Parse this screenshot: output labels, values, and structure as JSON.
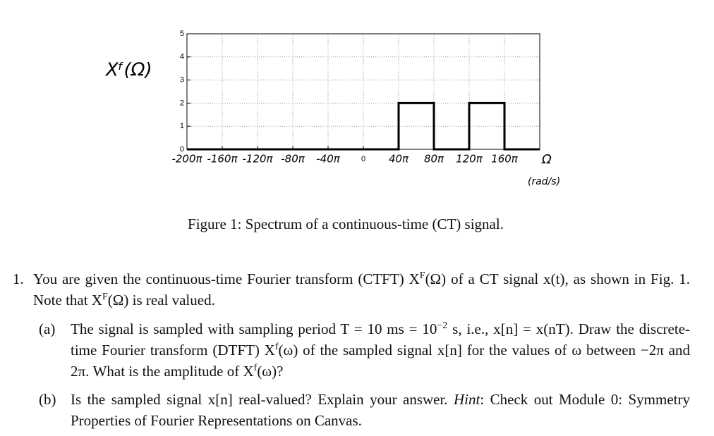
{
  "chart_data": {
    "type": "line",
    "ylabel": "Xᶠ(Ω)",
    "xlabel": "Ω",
    "xunit": "(rad/s)",
    "x": [
      -200,
      40,
      40,
      80,
      80,
      120,
      120,
      160,
      160,
      200
    ],
    "values": [
      0,
      0,
      2,
      2,
      0,
      0,
      2,
      2,
      0,
      0
    ],
    "color": "#000000",
    "xlim": [
      -200,
      200
    ],
    "xticks": [
      {
        "value": -200,
        "label": "-200π"
      },
      {
        "value": -160,
        "label": "-160π"
      },
      {
        "value": -120,
        "label": "-120π"
      },
      {
        "value": -80,
        "label": "-80π"
      },
      {
        "value": -40,
        "label": "-40π"
      },
      0,
      {
        "value": 40,
        "label": "40π"
      },
      {
        "value": 80,
        "label": "80π"
      },
      {
        "value": 120,
        "label": "120π"
      },
      {
        "value": 160,
        "label": "160π"
      }
    ],
    "ylim": [
      0,
      5
    ],
    "yticks": [
      0,
      1,
      2,
      3,
      4,
      5
    ],
    "grid": true
  },
  "caption": "Figure 1: Spectrum of a continuous-time (CT) signal.",
  "problem": {
    "number": "1.",
    "text": [
      {
        "t": "You are given the continuous-time Fourier transform (CTFT) X"
      },
      {
        "t": "F",
        "sup": true
      },
      {
        "t": "(Ω) of a CT signal x(t), as shown in Fig. 1. Note that X"
      },
      {
        "t": "F",
        "sup": true
      },
      {
        "t": "(Ω) is real valued."
      }
    ],
    "parts": [
      {
        "label": "(a)",
        "text": [
          {
            "t": "The signal is sampled with sampling period T = 10 ms = 10"
          },
          {
            "t": "−2",
            "sup": true
          },
          {
            "t": " s, i.e., x[n] = x(nT). Draw the discrete-time Fourier transform (DTFT) X"
          },
          {
            "t": "f",
            "sup": true
          },
          {
            "t": "(ω) of the sampled signal x[n] for the values of ω between −2π and 2π. What is the amplitude of X"
          },
          {
            "t": "f",
            "sup": true
          },
          {
            "t": "(ω)?"
          }
        ]
      },
      {
        "label": "(b)",
        "text": [
          {
            "t": "Is the sampled signal x[n] real-valued? Explain your answer. "
          },
          {
            "t": "Hint",
            "italic": true
          },
          {
            "t": ": Check out Module 0: Symmetry Properties of Fourier Representations on Canvas."
          }
        ]
      }
    ]
  }
}
